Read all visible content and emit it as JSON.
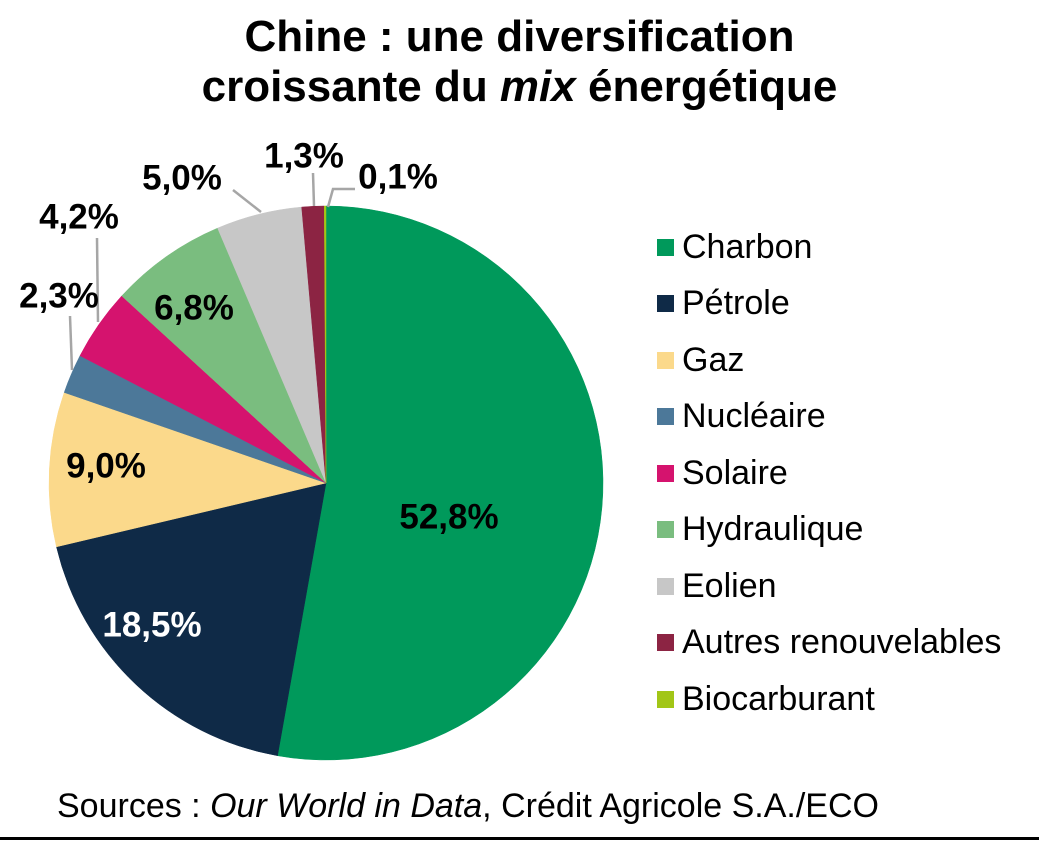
{
  "title": {
    "line1": "Chine : une diversification",
    "line2_pre": "croissante du ",
    "line2_italic": "mix",
    "line2_post": " énergétique"
  },
  "chart_data": {
    "type": "pie",
    "title": "Chine : une diversification croissante du mix énergétique",
    "start_angle_deg": 0,
    "direction": "clockwise",
    "legend_position": "right",
    "total": 100,
    "slices": [
      {
        "name": "Charbon",
        "value": 52.8,
        "label": "52,8%",
        "color": "#00995B",
        "label_placement": "inside",
        "label_color": "#000000"
      },
      {
        "name": "Pétrole",
        "value": 18.5,
        "label": "18,5%",
        "color": "#0F2A47",
        "label_placement": "inside",
        "label_color": "#FFFFFF"
      },
      {
        "name": "Gaz",
        "value": 9.0,
        "label": "9,0%",
        "color": "#FBD98B",
        "label_placement": "inside",
        "label_color": "#000000"
      },
      {
        "name": "Nucléaire",
        "value": 2.3,
        "label": "2,3%",
        "color": "#4C7899",
        "label_placement": "outside",
        "label_color": "#000000"
      },
      {
        "name": "Solaire",
        "value": 4.2,
        "label": "4,2%",
        "color": "#D5136E",
        "label_placement": "outside",
        "label_color": "#000000"
      },
      {
        "name": "Hydraulique",
        "value": 6.8,
        "label": "6,8%",
        "color": "#7ABD7F",
        "label_placement": "inside",
        "label_color": "#000000"
      },
      {
        "name": "Eolien",
        "value": 5.0,
        "label": "5,0%",
        "color": "#C7C7C7",
        "label_placement": "outside",
        "label_color": "#000000"
      },
      {
        "name": "Autres renouvelables",
        "value": 1.3,
        "label": "1,3%",
        "color": "#8C2443",
        "label_placement": "outside",
        "label_color": "#000000"
      },
      {
        "name": "Biocarburant",
        "value": 0.1,
        "label": "0,1%",
        "color": "#A2C617",
        "label_placement": "outside",
        "label_color": "#000000"
      }
    ]
  },
  "sources": {
    "prefix": "Sources : ",
    "italic": "Our World in Data",
    "suffix": ", Crédit Agricole S.A./ECO"
  },
  "colors": {
    "background": "#FFFFFF",
    "leader_line": "#A6A6A6",
    "text": "#000000",
    "rule": "#000000"
  }
}
